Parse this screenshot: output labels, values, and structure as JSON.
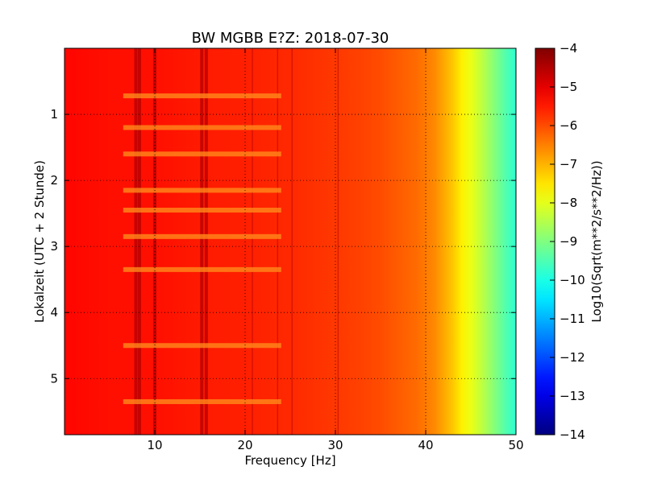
{
  "chart_data": {
    "type": "heatmap",
    "title": "BW MGBB E?Z: 2018-07-30",
    "xlabel": "Frequency [Hz]",
    "ylabel": "Lokalzeit (UTC + 2 Stunde)",
    "xlim": [
      0,
      50
    ],
    "ylim": [
      5.85,
      0
    ],
    "x_ticks": [
      10,
      20,
      30,
      40,
      50
    ],
    "y_ticks": [
      1,
      2,
      3,
      4,
      5
    ],
    "grid": true,
    "grid_style": "dotted",
    "colormap": "jet",
    "colorbar": {
      "label": "Log10(Sqrt(m**2/s**2/Hz))",
      "min": -14,
      "max": -4,
      "ticks": [
        -4,
        -5,
        -6,
        -7,
        -8,
        -9,
        -10,
        -11,
        -12,
        -13,
        -14
      ]
    },
    "spectrum_profile": {
      "frequency_hz": [
        0,
        5,
        10,
        15,
        20,
        25,
        30,
        33,
        35,
        37,
        39,
        41,
        42,
        43,
        44,
        45,
        46,
        47,
        48,
        49,
        50
      ],
      "log10_psd": [
        -5.3,
        -5.4,
        -5.4,
        -5.5,
        -5.55,
        -5.65,
        -5.8,
        -5.9,
        -6.0,
        -6.15,
        -6.3,
        -6.6,
        -6.9,
        -7.2,
        -7.6,
        -7.95,
        -8.3,
        -8.7,
        -9.1,
        -9.5,
        -9.8
      ]
    },
    "spectral_lines_hz": [
      7.9,
      8.3,
      10.0,
      15.2,
      15.7,
      20.8,
      23.6,
      25.2,
      30.3
    ],
    "time_bands_hours": [
      0.72,
      1.2,
      1.6,
      2.15,
      2.45,
      2.85,
      3.35,
      4.5,
      5.35
    ]
  }
}
